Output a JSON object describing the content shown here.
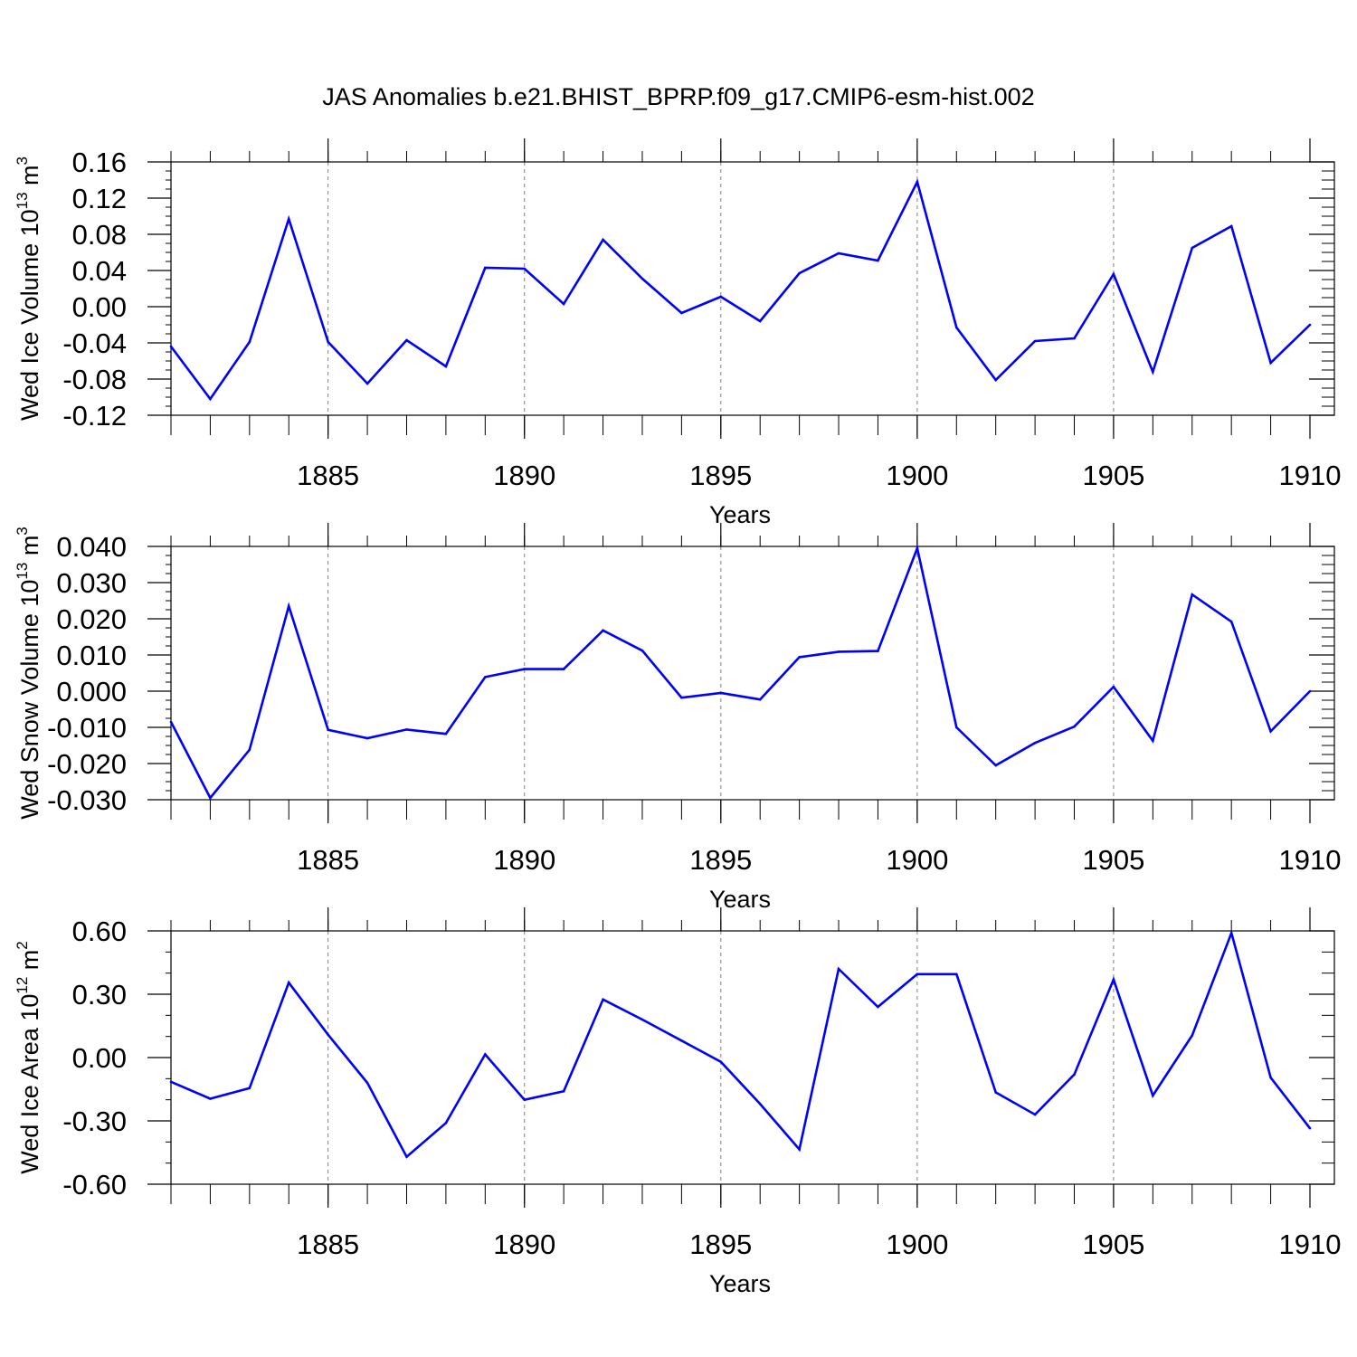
{
  "title": "JAS Anomalies b.e21.BHIST_BPRP.f09_g17.CMIP6-esm-hist.002",
  "chart_data": [
    {
      "type": "line",
      "ylabel": "Wed Ice Volume 10",
      "ylabel_sup": "13",
      "ylabel_unit": " m",
      "ylabel_unit_sup": "3",
      "xlabel": "Years",
      "xlim": [
        1881,
        1910
      ],
      "ylim": [
        -0.12,
        0.16
      ],
      "yticks": [
        -0.12,
        -0.08,
        -0.04,
        0.0,
        0.04,
        0.08,
        0.12,
        0.16
      ],
      "ytick_labels": [
        "-0.12",
        "-0.08",
        "-0.04",
        "0.00",
        "0.04",
        "0.08",
        "0.12",
        "0.16"
      ],
      "yminor": 0.01,
      "xticks": [
        1885,
        1890,
        1895,
        1900,
        1905,
        1910
      ],
      "xtick_labels": [
        "1885",
        "1890",
        "1895",
        "1900",
        "1905",
        "1910"
      ],
      "grid": "dashed vertical at labeled years",
      "color": "#0000ff",
      "x": [
        1881,
        1882,
        1883,
        1884,
        1885,
        1886,
        1887,
        1888,
        1889,
        1890,
        1891,
        1892,
        1893,
        1894,
        1895,
        1896,
        1897,
        1898,
        1899,
        1900,
        1901,
        1902,
        1903,
        1904,
        1905,
        1906,
        1907,
        1908,
        1909,
        1910
      ],
      "y": [
        -0.044,
        -0.102,
        -0.039,
        0.097,
        -0.039,
        -0.085,
        -0.037,
        -0.066,
        0.043,
        0.042,
        0.003,
        0.074,
        0.031,
        -0.007,
        0.011,
        -0.016,
        0.037,
        0.059,
        0.051,
        0.138,
        -0.023,
        -0.081,
        -0.038,
        -0.035,
        0.036,
        -0.072,
        0.065,
        0.089,
        -0.062,
        -0.02
      ]
    },
    {
      "type": "line",
      "ylabel": "Wed Snow Volume 10",
      "ylabel_sup": "13",
      "ylabel_unit": " m",
      "ylabel_unit_sup": "3",
      "xlabel": "Years",
      "xlim": [
        1881,
        1910
      ],
      "ylim": [
        -0.03,
        0.04
      ],
      "yticks": [
        -0.03,
        -0.02,
        -0.01,
        0.0,
        0.01,
        0.02,
        0.03,
        0.04
      ],
      "ytick_labels": [
        "-0.030",
        "-0.020",
        "-0.010",
        "0.000",
        "0.010",
        "0.020",
        "0.030",
        "0.040"
      ],
      "yminor": 0.0025,
      "xticks": [
        1885,
        1890,
        1895,
        1900,
        1905,
        1910
      ],
      "xtick_labels": [
        "1885",
        "1890",
        "1895",
        "1900",
        "1905",
        "1910"
      ],
      "grid": "dashed vertical at labeled years",
      "color": "#0000ff",
      "x": [
        1881,
        1882,
        1883,
        1884,
        1885,
        1886,
        1887,
        1888,
        1889,
        1890,
        1891,
        1892,
        1893,
        1894,
        1895,
        1896,
        1897,
        1898,
        1899,
        1900,
        1901,
        1902,
        1903,
        1904,
        1905,
        1906,
        1907,
        1908,
        1909,
        1910
      ],
      "y": [
        -0.0085,
        -0.0295,
        -0.0162,
        0.0235,
        -0.0107,
        -0.013,
        -0.0106,
        -0.0118,
        0.0039,
        0.0061,
        0.0061,
        0.0168,
        0.0112,
        -0.0018,
        -0.0005,
        -0.0023,
        0.0094,
        0.0109,
        0.0111,
        0.0395,
        -0.01,
        -0.0205,
        -0.0143,
        -0.0098,
        0.0012,
        -0.0137,
        0.0267,
        0.0192,
        -0.0111,
        0.0
      ]
    },
    {
      "type": "line",
      "ylabel": "Wed Ice Area 10",
      "ylabel_sup": "12",
      "ylabel_unit": " m",
      "ylabel_unit_sup": "2",
      "xlabel": "Years",
      "xlim": [
        1881,
        1910
      ],
      "ylim": [
        -0.6,
        0.6
      ],
      "yticks": [
        -0.6,
        -0.3,
        0.0,
        0.3,
        0.6
      ],
      "ytick_labels": [
        "-0.60",
        "-0.30",
        "0.00",
        "0.30",
        "0.60"
      ],
      "yminor": 0.1,
      "xticks": [
        1885,
        1890,
        1895,
        1900,
        1905,
        1910
      ],
      "xtick_labels": [
        "1885",
        "1890",
        "1895",
        "1900",
        "1905",
        "1910"
      ],
      "grid": "dashed vertical at labeled years",
      "color": "#0000ff",
      "x": [
        1881,
        1882,
        1883,
        1884,
        1885,
        1886,
        1887,
        1888,
        1889,
        1890,
        1891,
        1892,
        1893,
        1894,
        1895,
        1896,
        1897,
        1898,
        1899,
        1900,
        1901,
        1902,
        1903,
        1904,
        1905,
        1906,
        1907,
        1908,
        1909,
        1910
      ],
      "y": [
        -0.115,
        -0.195,
        -0.145,
        0.355,
        0.108,
        -0.12,
        -0.47,
        -0.31,
        0.015,
        -0.2,
        -0.16,
        0.275,
        0.18,
        0.08,
        -0.02,
        -0.22,
        -0.435,
        0.42,
        0.24,
        0.395,
        0.395,
        -0.165,
        -0.27,
        -0.08,
        0.37,
        -0.18,
        0.105,
        0.59,
        -0.095,
        -0.335
      ]
    }
  ]
}
